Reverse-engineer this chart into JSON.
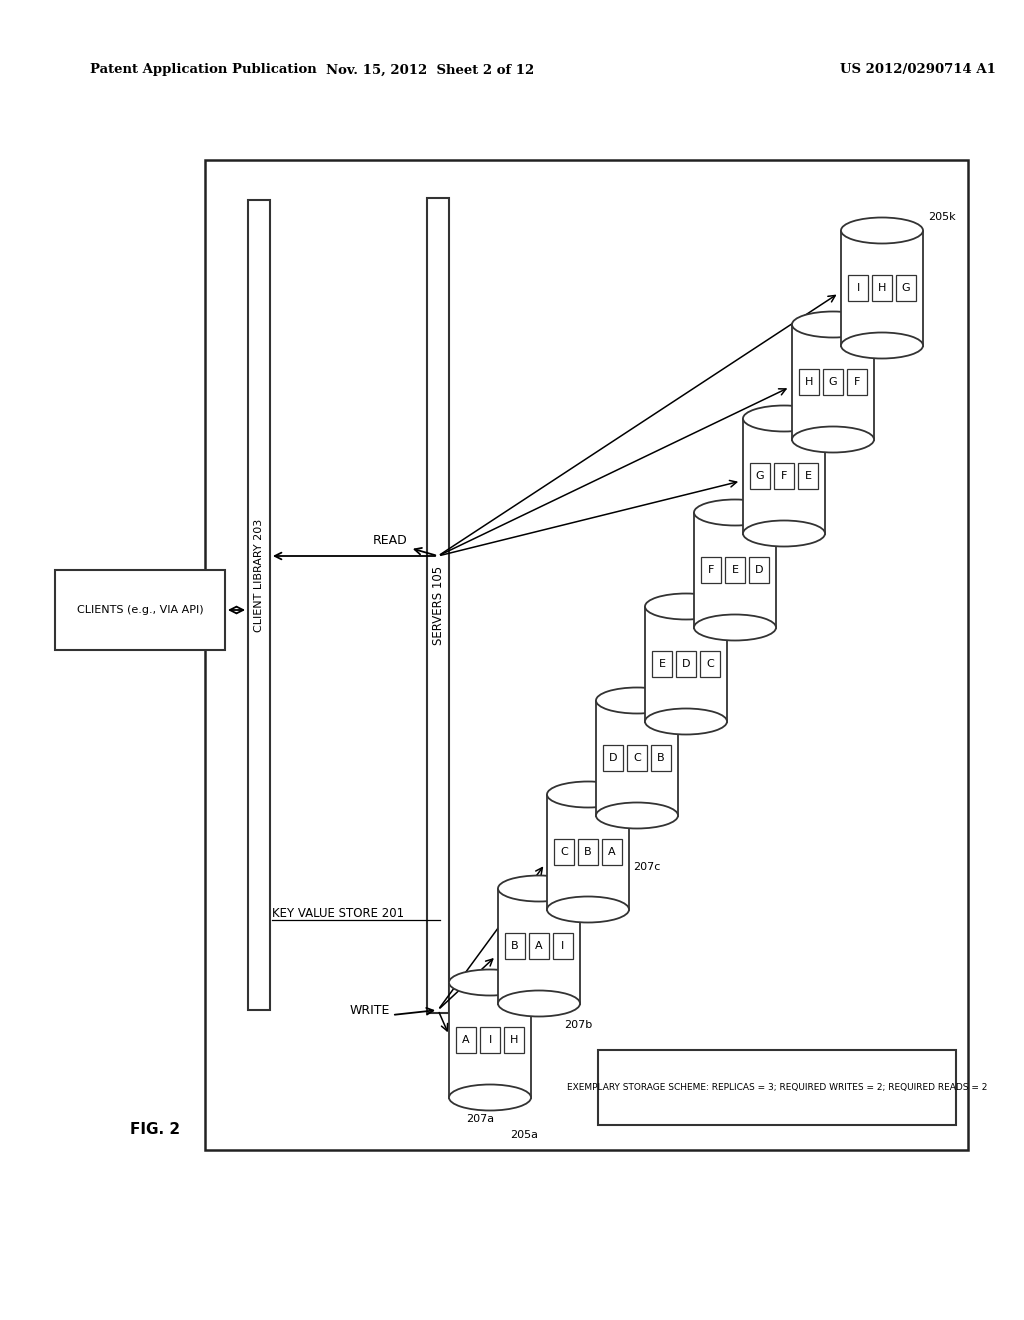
{
  "bg_color": "#ffffff",
  "header_left": "Patent Application Publication",
  "header_mid": "Nov. 15, 2012  Sheet 2 of 12",
  "header_right": "US 2012/0290714 A1",
  "fig_label": "FIG. 2",
  "clients_text": "CLIENTS (e.g., VIA API)",
  "client_library_label": "CLIENT LIBRARY 203",
  "kv_store_label": "KEY VALUE STORE 201",
  "servers_label": "SERVERS 105",
  "write_label": "WRITE",
  "read_label": "READ",
  "cylinders": [
    {
      "labels": [
        "A",
        "I",
        "H"
      ],
      "tag": "207a",
      "tag2": "205a"
    },
    {
      "labels": [
        "B",
        "A",
        "I"
      ],
      "tag": "207b",
      "tag2": null
    },
    {
      "labels": [
        "C",
        "B",
        "A"
      ],
      "tag": "207c",
      "tag2": null
    },
    {
      "labels": [
        "D",
        "C",
        "B"
      ],
      "tag": null,
      "tag2": null
    },
    {
      "labels": [
        "E",
        "D",
        "C"
      ],
      "tag": null,
      "tag2": null
    },
    {
      "labels": [
        "F",
        "E",
        "D"
      ],
      "tag": null,
      "tag2": null
    },
    {
      "labels": [
        "G",
        "F",
        "E"
      ],
      "tag": null,
      "tag2": null
    },
    {
      "labels": [
        "H",
        "G",
        "F"
      ],
      "tag": null,
      "tag2": null
    },
    {
      "labels": [
        "I",
        "H",
        "G"
      ],
      "tag": "205k",
      "tag2": null
    }
  ],
  "exemplary_text": "EXEMPLARY STORAGE SCHEME: REPLICAS = 3; REQUIRED WRITES = 2; REQUIRED READS = 2"
}
